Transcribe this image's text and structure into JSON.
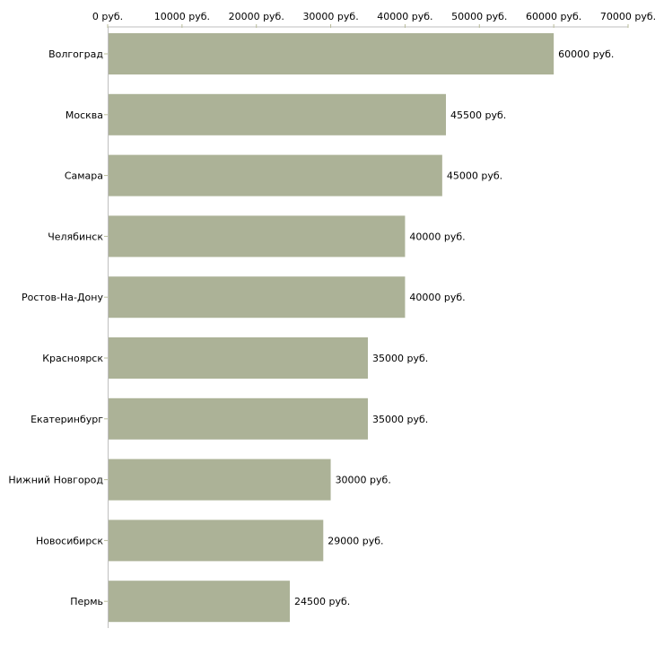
{
  "chart_data": {
    "type": "bar",
    "orientation": "horizontal",
    "title": "",
    "xlabel": "",
    "ylabel": "",
    "xlim": [
      0,
      70000
    ],
    "unit": "руб.",
    "ticks": [
      {
        "value": 0,
        "label": "0 руб."
      },
      {
        "value": 10000,
        "label": "10000 руб."
      },
      {
        "value": 20000,
        "label": "20000 руб."
      },
      {
        "value": 30000,
        "label": "30000 руб."
      },
      {
        "value": 40000,
        "label": "40000 руб."
      },
      {
        "value": 50000,
        "label": "50000 руб."
      },
      {
        "value": 60000,
        "label": "60000 руб."
      },
      {
        "value": 70000,
        "label": "70000 руб."
      }
    ],
    "categories": [
      "Волгоград",
      "Москва",
      "Самара",
      "Челябинск",
      "Ростов-На-Дону",
      "Красноярск",
      "Екатеринбург",
      "Нижний Новгород",
      "Новосибирск",
      "Пермь"
    ],
    "values": [
      60000,
      45500,
      45000,
      40000,
      40000,
      35000,
      35000,
      30000,
      29000,
      24500
    ],
    "data_labels": [
      "60000 руб.",
      "45500 руб.",
      "45000 руб.",
      "40000 руб.",
      "40000 руб.",
      "35000 руб.",
      "35000 руб.",
      "30000 руб.",
      "29000 руб.",
      "24500 руб."
    ],
    "bar_color": "#acb297",
    "axis_color": "#bfbfbf",
    "tick_color": "#b8bc9a",
    "grid": false
  }
}
